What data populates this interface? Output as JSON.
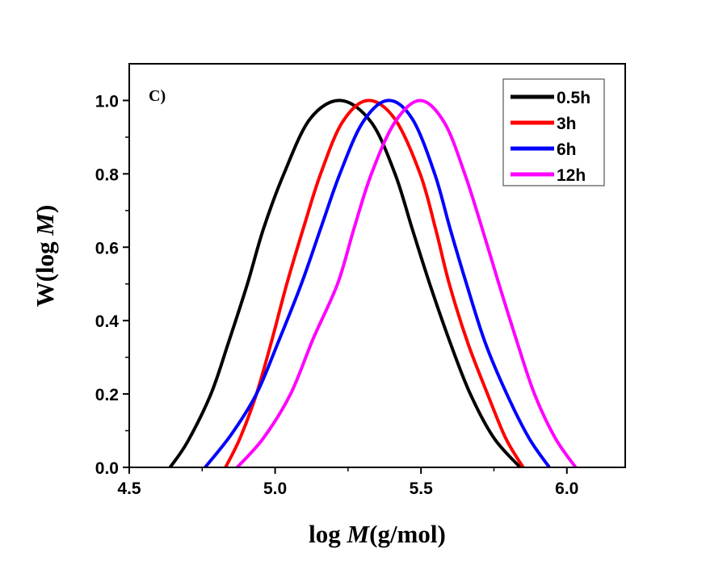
{
  "chart_data": {
    "type": "line",
    "title": "",
    "panel_label": "C)",
    "xlabel": {
      "prefix": "log ",
      "italic": "M",
      "suffix": "(g/mol)"
    },
    "ylabel": {
      "prefix": "W(log ",
      "italic": "M",
      "suffix": ")"
    },
    "xlim": [
      4.5,
      6.2
    ],
    "ylim": [
      0.0,
      1.1
    ],
    "xticks": [
      4.5,
      5.0,
      5.5,
      6.0
    ],
    "xtick_labels": [
      "4.5",
      "5.0",
      "5.5",
      "6.0"
    ],
    "xminor": [
      4.75,
      5.25,
      5.75
    ],
    "yticks": [
      0.0,
      0.2,
      0.4,
      0.6,
      0.8,
      1.0
    ],
    "ytick_labels": [
      "0.0",
      "0.2",
      "0.4",
      "0.6",
      "0.8",
      "1.0"
    ],
    "yminor": [
      0.1,
      0.3,
      0.5,
      0.7,
      0.9
    ],
    "grid": false,
    "legend_position": "top-right",
    "series": [
      {
        "name": "0.5h",
        "color": "#000000",
        "x": [
          4.64,
          4.7,
          4.78,
          4.84,
          4.905,
          4.96,
          5.03,
          5.12,
          5.225,
          5.33,
          5.411,
          5.47,
          5.53,
          5.6,
          5.669,
          5.75,
          5.84
        ],
        "y": [
          0.0,
          0.07,
          0.2,
          0.34,
          0.5,
          0.65,
          0.8,
          0.95,
          1.0,
          0.94,
          0.8,
          0.65,
          0.5,
          0.34,
          0.2,
          0.08,
          0.0
        ]
      },
      {
        "name": "3h",
        "color": "#ff0000",
        "x": [
          4.83,
          4.88,
          4.936,
          4.99,
          5.04,
          5.1,
          5.156,
          5.23,
          5.317,
          5.41,
          5.497,
          5.55,
          5.597,
          5.66,
          5.728,
          5.79,
          5.85
        ],
        "y": [
          0.0,
          0.08,
          0.2,
          0.35,
          0.5,
          0.66,
          0.8,
          0.94,
          1.0,
          0.95,
          0.8,
          0.65,
          0.5,
          0.34,
          0.2,
          0.08,
          0.0
        ]
      },
      {
        "name": "6h",
        "color": "#0000ff",
        "x": [
          4.76,
          4.85,
          4.936,
          5.01,
          5.09,
          5.16,
          5.222,
          5.3,
          5.386,
          5.47,
          5.547,
          5.6,
          5.656,
          5.72,
          5.794,
          5.87,
          5.94
        ],
        "y": [
          0.0,
          0.09,
          0.2,
          0.34,
          0.5,
          0.66,
          0.8,
          0.94,
          1.0,
          0.95,
          0.8,
          0.65,
          0.5,
          0.34,
          0.2,
          0.08,
          0.0
        ]
      },
      {
        "name": "12h",
        "color": "#ff00ff",
        "x": [
          4.87,
          4.96,
          5.053,
          5.13,
          5.214,
          5.27,
          5.33,
          5.41,
          5.497,
          5.58,
          5.65,
          5.71,
          5.767,
          5.83,
          5.889,
          5.96,
          6.03
        ],
        "y": [
          0.0,
          0.08,
          0.2,
          0.35,
          0.5,
          0.65,
          0.8,
          0.94,
          1.0,
          0.94,
          0.8,
          0.65,
          0.5,
          0.34,
          0.2,
          0.08,
          0.0
        ]
      }
    ]
  }
}
